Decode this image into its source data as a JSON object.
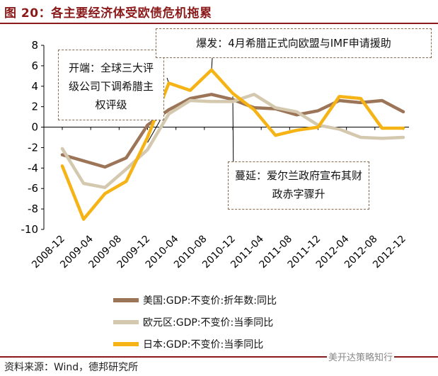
{
  "title": "图 20：各主要经济体受欧债危机拖累",
  "source": "资料来源：Wind，德邦研究所",
  "watermark": "美开达策略知行",
  "annotations": {
    "start": "开端：全球三大评级公司下调希腊主权评级",
    "outbreak": "爆发：4月希腊正式向欧盟与IMF申请援助",
    "spread": "蔓延：爱尔兰政府宣布其财政赤字骤升"
  },
  "chart_data": {
    "type": "line",
    "x_tick_labels": [
      "2008-12",
      "2009-04",
      "2009-08",
      "2009-12",
      "2010-04",
      "2010-08",
      "2010-12",
      "2011-04",
      "2011-08",
      "2011-12",
      "2012-04",
      "2012-08",
      "2012-12"
    ],
    "ylim": [
      -10,
      8
    ],
    "yticks": [
      -10,
      -8,
      -6,
      -4,
      -2,
      0,
      2,
      4,
      6,
      8
    ],
    "points_per_series": 17,
    "series": [
      {
        "name": "美国:GDP:不变价:折年数:同比",
        "color": "#9c7457",
        "values": [
          -2.7,
          -3.3,
          -3.9,
          -3.0,
          0.2,
          1.7,
          2.8,
          3.2,
          2.7,
          1.9,
          1.8,
          1.2,
          1.6,
          2.6,
          2.4,
          2.6,
          1.5
        ]
      },
      {
        "name": "欧元区:GDP:不变价:当季同比",
        "color": "#d4c8ae",
        "values": [
          -2.1,
          -5.5,
          -5.9,
          -4.1,
          -2.2,
          1.3,
          2.6,
          2.5,
          2.5,
          3.2,
          1.9,
          1.5,
          0.2,
          -0.2,
          -1.0,
          -1.1,
          -1.0
        ]
      },
      {
        "name": "日本:GDP:不变价:当季同比",
        "color": "#f5b315",
        "values": [
          -3.8,
          -9.0,
          -6.5,
          -5.3,
          -1.0,
          4.3,
          3.6,
          5.6,
          3.3,
          1.7,
          -0.8,
          -0.3,
          0.0,
          3.0,
          2.8,
          -0.1,
          -0.1
        ]
      }
    ]
  }
}
